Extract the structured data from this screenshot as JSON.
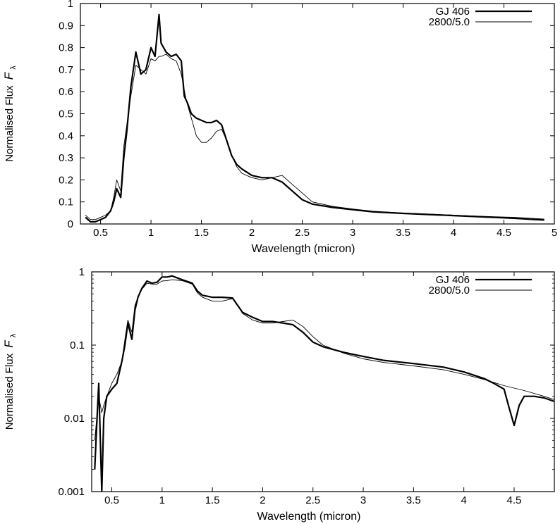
{
  "chart_data": [
    {
      "type": "line",
      "scale": "linear",
      "xlabel": "Wavelength (micron)",
      "ylabel": "Normalised Flux",
      "ylabel_symbol": "F",
      "ylabel_subscript": "λ",
      "xlim": [
        0.3,
        5.0
      ],
      "ylim": [
        0,
        1
      ],
      "xticks": [
        "0.5",
        "1",
        "1.5",
        "2",
        "2.5",
        "3",
        "3.5",
        "4",
        "4.5",
        "5"
      ],
      "xtick_values": [
        0.5,
        1,
        1.5,
        2,
        2.5,
        3,
        3.5,
        4,
        4.5,
        5
      ],
      "yticks": [
        "0",
        "0.1",
        "0.2",
        "0.3",
        "0.4",
        "0.5",
        "0.6",
        "0.7",
        "0.8",
        "0.9",
        "1"
      ],
      "ytick_values": [
        0,
        0.1,
        0.2,
        0.3,
        0.4,
        0.5,
        0.6,
        0.7,
        0.8,
        0.9,
        1
      ],
      "legend_position": "top-right",
      "series": [
        {
          "name": "GJ 406",
          "style": "thick",
          "x": [
            0.35,
            0.4,
            0.45,
            0.5,
            0.55,
            0.6,
            0.63,
            0.66,
            0.7,
            0.73,
            0.76,
            0.8,
            0.85,
            0.9,
            0.95,
            1.0,
            1.04,
            1.08,
            1.1,
            1.15,
            1.2,
            1.25,
            1.3,
            1.33,
            1.36,
            1.4,
            1.45,
            1.5,
            1.55,
            1.6,
            1.65,
            1.7,
            1.75,
            1.8,
            1.85,
            1.9,
            2.0,
            2.1,
            2.2,
            2.3,
            2.4,
            2.5,
            2.6,
            2.8,
            3.0,
            3.2,
            3.5,
            3.8,
            4.0,
            4.2,
            4.4,
            4.6,
            4.8,
            4.9
          ],
          "y": [
            0.03,
            0.01,
            0.01,
            0.02,
            0.03,
            0.06,
            0.1,
            0.16,
            0.12,
            0.3,
            0.42,
            0.62,
            0.78,
            0.68,
            0.7,
            0.8,
            0.76,
            0.95,
            0.82,
            0.78,
            0.76,
            0.77,
            0.74,
            0.58,
            0.55,
            0.5,
            0.48,
            0.47,
            0.46,
            0.46,
            0.47,
            0.45,
            0.38,
            0.31,
            0.27,
            0.25,
            0.22,
            0.21,
            0.21,
            0.19,
            0.15,
            0.11,
            0.09,
            0.075,
            0.065,
            0.055,
            0.048,
            0.042,
            0.038,
            0.034,
            0.03,
            0.026,
            0.02,
            0.018
          ]
        },
        {
          "name": "2800/5.0",
          "style": "thin",
          "x": [
            0.35,
            0.4,
            0.45,
            0.5,
            0.55,
            0.6,
            0.63,
            0.66,
            0.7,
            0.73,
            0.76,
            0.8,
            0.85,
            0.9,
            0.95,
            1.0,
            1.04,
            1.08,
            1.1,
            1.15,
            1.2,
            1.25,
            1.3,
            1.35,
            1.4,
            1.45,
            1.5,
            1.55,
            1.6,
            1.65,
            1.7,
            1.75,
            1.8,
            1.85,
            1.9,
            2.0,
            2.1,
            2.2,
            2.3,
            2.4,
            2.5,
            2.6,
            2.8,
            3.0,
            3.2,
            3.5,
            3.8,
            4.0,
            4.2,
            4.4,
            4.6,
            4.8,
            4.9
          ],
          "y": [
            0.04,
            0.02,
            0.02,
            0.03,
            0.04,
            0.06,
            0.12,
            0.2,
            0.15,
            0.35,
            0.45,
            0.58,
            0.72,
            0.7,
            0.68,
            0.75,
            0.74,
            0.76,
            0.76,
            0.77,
            0.75,
            0.74,
            0.68,
            0.56,
            0.48,
            0.4,
            0.37,
            0.37,
            0.39,
            0.42,
            0.43,
            0.38,
            0.31,
            0.26,
            0.23,
            0.21,
            0.2,
            0.21,
            0.22,
            0.18,
            0.14,
            0.1,
            0.08,
            0.068,
            0.058,
            0.05,
            0.044,
            0.04,
            0.036,
            0.033,
            0.03,
            0.025,
            0.022
          ]
        }
      ]
    },
    {
      "type": "line",
      "scale": "log",
      "xlabel": "Wavelength (micron)",
      "ylabel": "Normalised Flux",
      "ylabel_symbol": "F",
      "ylabel_subscript": "λ",
      "xlim": [
        0.3,
        4.9
      ],
      "ylim": [
        0.001,
        1
      ],
      "xticks": [
        "0.5",
        "1",
        "1.5",
        "2",
        "2.5",
        "3",
        "3.5",
        "4",
        "4.5"
      ],
      "xtick_values": [
        0.5,
        1,
        1.5,
        2,
        2.5,
        3,
        3.5,
        4,
        4.5
      ],
      "yticks": [
        "0.001",
        "0.01",
        "0.1",
        "1"
      ],
      "ytick_values": [
        0.001,
        0.01,
        0.1,
        1
      ],
      "legend_position": "top-right",
      "series": [
        {
          "name": "GJ 406",
          "style": "thick",
          "x": [
            0.33,
            0.35,
            0.37,
            0.4,
            0.42,
            0.45,
            0.5,
            0.55,
            0.6,
            0.63,
            0.66,
            0.7,
            0.73,
            0.76,
            0.8,
            0.85,
            0.9,
            0.95,
            1.0,
            1.05,
            1.1,
            1.2,
            1.3,
            1.35,
            1.4,
            1.5,
            1.6,
            1.7,
            1.75,
            1.8,
            1.9,
            2.0,
            2.1,
            2.2,
            2.3,
            2.4,
            2.5,
            2.6,
            2.8,
            3.0,
            3.2,
            3.5,
            3.8,
            4.0,
            4.2,
            4.3,
            4.4,
            4.45,
            4.5,
            4.55,
            4.6,
            4.7,
            4.8,
            4.9
          ],
          "y": [
            0.002,
            0.008,
            0.03,
            0.001,
            0.01,
            0.02,
            0.025,
            0.03,
            0.06,
            0.1,
            0.2,
            0.12,
            0.3,
            0.45,
            0.6,
            0.75,
            0.7,
            0.72,
            0.85,
            0.85,
            0.88,
            0.78,
            0.7,
            0.55,
            0.48,
            0.45,
            0.45,
            0.44,
            0.35,
            0.28,
            0.24,
            0.21,
            0.21,
            0.2,
            0.19,
            0.15,
            0.11,
            0.095,
            0.08,
            0.07,
            0.062,
            0.056,
            0.05,
            0.043,
            0.035,
            0.03,
            0.025,
            0.014,
            0.008,
            0.015,
            0.02,
            0.02,
            0.019,
            0.017
          ]
        },
        {
          "name": "2800/5.0",
          "style": "thin",
          "x": [
            0.33,
            0.35,
            0.37,
            0.4,
            0.42,
            0.45,
            0.5,
            0.55,
            0.6,
            0.63,
            0.66,
            0.7,
            0.73,
            0.76,
            0.8,
            0.85,
            0.9,
            0.95,
            1.0,
            1.05,
            1.1,
            1.2,
            1.3,
            1.35,
            1.4,
            1.5,
            1.6,
            1.7,
            1.75,
            1.8,
            1.9,
            2.0,
            2.1,
            2.2,
            2.3,
            2.4,
            2.5,
            2.6,
            2.8,
            3.0,
            3.2,
            3.5,
            3.8,
            4.0,
            4.2,
            4.4,
            4.6,
            4.8,
            4.9
          ],
          "y": [
            0.005,
            0.01,
            0.02,
            0.012,
            0.015,
            0.02,
            0.03,
            0.04,
            0.06,
            0.12,
            0.22,
            0.15,
            0.35,
            0.45,
            0.58,
            0.7,
            0.68,
            0.68,
            0.75,
            0.76,
            0.78,
            0.76,
            0.68,
            0.52,
            0.45,
            0.4,
            0.4,
            0.43,
            0.35,
            0.27,
            0.22,
            0.2,
            0.2,
            0.21,
            0.22,
            0.18,
            0.13,
            0.1,
            0.078,
            0.065,
            0.058,
            0.052,
            0.046,
            0.04,
            0.034,
            0.028,
            0.024,
            0.02,
            0.018
          ]
        }
      ]
    }
  ]
}
